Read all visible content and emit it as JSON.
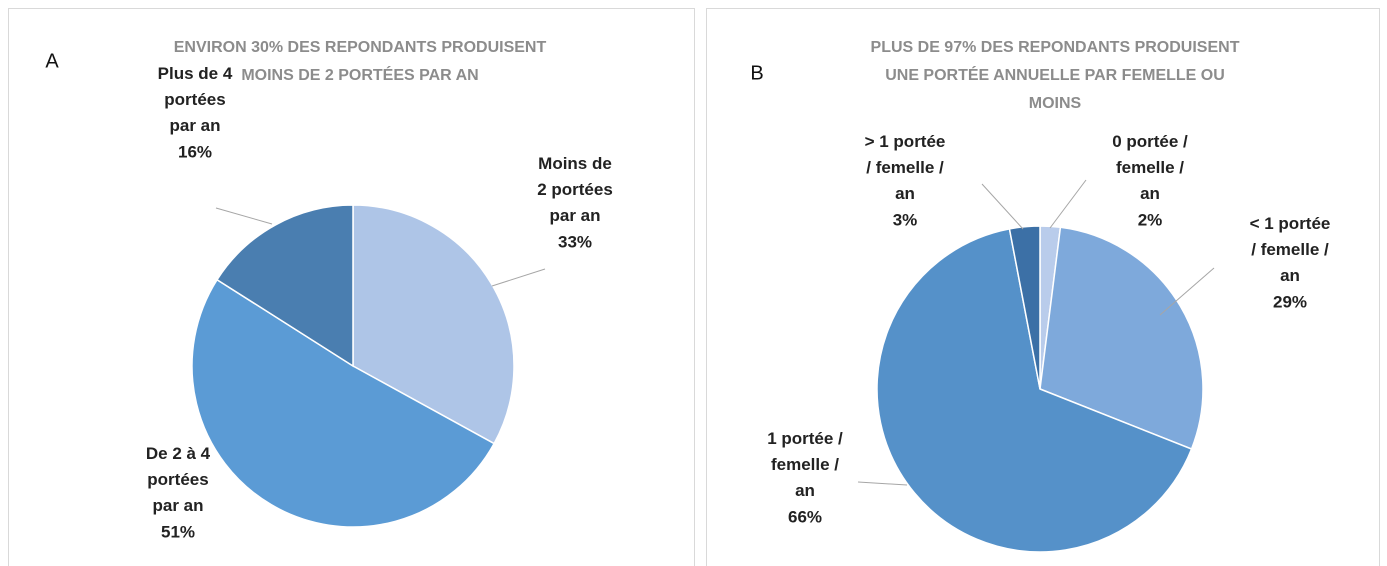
{
  "chart_data": [
    {
      "type": "pie",
      "panel": "A",
      "title": "ENVIRON 30% DES REPONDANTS PRODUISENT MOINS DE 2 PORTÉES PAR AN",
      "categories": [
        "Moins de 2 portées par an",
        "De 2 à 4 portées par an",
        "Plus de 4 portées par an"
      ],
      "values": [
        33,
        51,
        16
      ],
      "value_labels": [
        "33%",
        "51%",
        "16%"
      ],
      "colors": [
        "#aec5e7",
        "#5b9bd5",
        "#4a7eb0"
      ]
    },
    {
      "type": "pie",
      "panel": "B",
      "title": "PLUS DE 97% DES REPONDANTS PRODUISENT UNE PORTÉE ANNUELLE PAR FEMELLE OU MOINS",
      "categories": [
        "0 portée / femelle / an",
        "< 1 portée / femelle / an",
        "1 portée / femelle / an",
        "> 1 portée / femelle / an"
      ],
      "values": [
        2,
        29,
        66,
        3
      ],
      "value_labels": [
        "2%",
        "29%",
        "66%",
        "3%"
      ],
      "colors": [
        "#b9cceb",
        "#7ea9db",
        "#5591c9",
        "#3c70a6"
      ]
    }
  ]
}
